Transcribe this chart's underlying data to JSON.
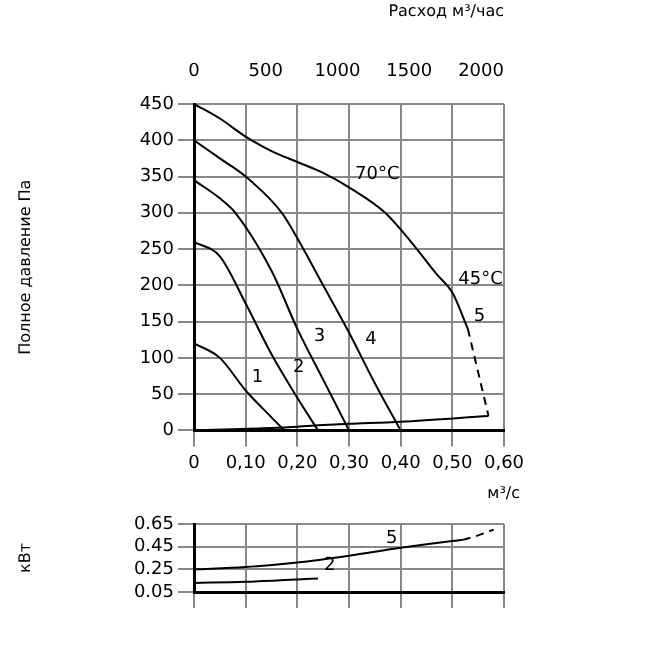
{
  "chart_data": [
    {
      "type": "line",
      "ylabel": "Полное давление Па",
      "xlabel": "м³/с",
      "x2label": "Расход м³/час",
      "xlim": [
        0,
        0.6
      ],
      "xticks": [
        0,
        {
          "value": 0.1,
          "label": "0,10"
        },
        {
          "value": 0.2,
          "label": "0,20"
        },
        {
          "value": 0.3,
          "label": "0,30"
        },
        {
          "value": 0.4,
          "label": "0,40"
        },
        {
          "value": 0.5,
          "label": "0,50"
        },
        {
          "value": 0.6,
          "label": "0,60"
        }
      ],
      "ylim": [
        0,
        450
      ],
      "yticks": [
        0,
        50,
        100,
        150,
        200,
        250,
        300,
        350,
        400,
        450
      ],
      "x2lim": [
        0,
        2160
      ],
      "x2ticks": [
        0,
        500,
        1000,
        1500,
        2000
      ],
      "grid": true,
      "marker": "none",
      "series": [
        {
          "color": "#000000",
          "line_style": "solid",
          "x": [
            0,
            0.05,
            0.1,
            0.15,
            0.175
          ],
          "values": [
            120,
            100,
            55,
            18,
            0
          ]
        },
        {
          "color": "#000000",
          "line_style": "solid",
          "x": [
            0,
            0.05,
            0.1,
            0.15,
            0.2,
            0.24
          ],
          "values": [
            260,
            240,
            175,
            105,
            45,
            0
          ]
        },
        {
          "color": "#000000",
          "line_style": "solid",
          "x": [
            0,
            0.05,
            0.08,
            0.15,
            0.2,
            0.25,
            0.3
          ],
          "values": [
            345,
            320,
            300,
            220,
            140,
            70,
            0
          ]
        },
        {
          "color": "#000000",
          "line_style": "solid",
          "x": [
            0,
            0.05,
            0.1,
            0.17,
            0.2,
            0.25,
            0.3,
            0.35,
            0.4
          ],
          "values": [
            400,
            375,
            350,
            300,
            265,
            200,
            135,
            65,
            0
          ]
        },
        {
          "color": "#000000",
          "line_style": "solid",
          "x": [
            0,
            0.05,
            0.1,
            0.15,
            0.2,
            0.25,
            0.3,
            0.37,
            0.42,
            0.47,
            0.5,
            0.53
          ],
          "values": [
            450,
            430,
            405,
            385,
            370,
            355,
            335,
            300,
            260,
            215,
            190,
            140
          ]
        },
        {
          "color": "#000000",
          "line_style": "dashed",
          "x": [
            0.53,
            0.55,
            0.57
          ],
          "values": [
            140,
            80,
            20
          ]
        },
        {
          "color": "#000000",
          "line_style": "solid",
          "x": [
            0,
            0.175,
            0.24,
            0.3,
            0.4,
            0.57
          ],
          "values": [
            0,
            4,
            7,
            9,
            12,
            20
          ]
        }
      ],
      "annotations": [
        {
          "text": "1",
          "x": 0.1,
          "y": 55
        },
        {
          "text": "2",
          "x": 0.18,
          "y": 69
        },
        {
          "text": "3",
          "x": 0.22,
          "y": 112
        },
        {
          "text": "4",
          "x": 0.32,
          "y": 107
        },
        {
          "text": "5",
          "x": 0.53,
          "y": 140
        },
        {
          "text": "70°C",
          "x": 0.3,
          "y": 335
        },
        {
          "text": "45°C",
          "x": 0.5,
          "y": 190
        }
      ]
    },
    {
      "type": "line",
      "ylabel": "кВт",
      "xlim": [
        0,
        0.6
      ],
      "ylim": [
        0.05,
        0.65
      ],
      "yticks": [
        0.05,
        0.25,
        0.45,
        0.65
      ],
      "xticks": [
        0,
        0.1,
        0.2,
        0.3,
        0.4,
        0.5,
        0.6
      ],
      "tick_labels": "y",
      "grid": true,
      "marker": "none",
      "series": [
        {
          "color": "#000000",
          "line_style": "solid",
          "x": [
            0,
            0.1,
            0.2,
            0.3,
            0.4,
            0.5,
            0.52
          ],
          "values": [
            0.25,
            0.27,
            0.31,
            0.37,
            0.44,
            0.5,
            0.51
          ]
        },
        {
          "color": "#000000",
          "line_style": "solid",
          "x": [
            0,
            0.1,
            0.2,
            0.24
          ],
          "values": [
            0.13,
            0.14,
            0.16,
            0.17
          ]
        },
        {
          "color": "#000000",
          "line_style": "dashed",
          "x": [
            0.52,
            0.55,
            0.58
          ],
          "values": [
            0.51,
            0.55,
            0.6
          ]
        }
      ],
      "annotations": [
        {
          "text": "5",
          "x": 0.36,
          "y": 0.41
        },
        {
          "text": "2",
          "x": 0.24,
          "y": 0.17
        }
      ]
    }
  ]
}
